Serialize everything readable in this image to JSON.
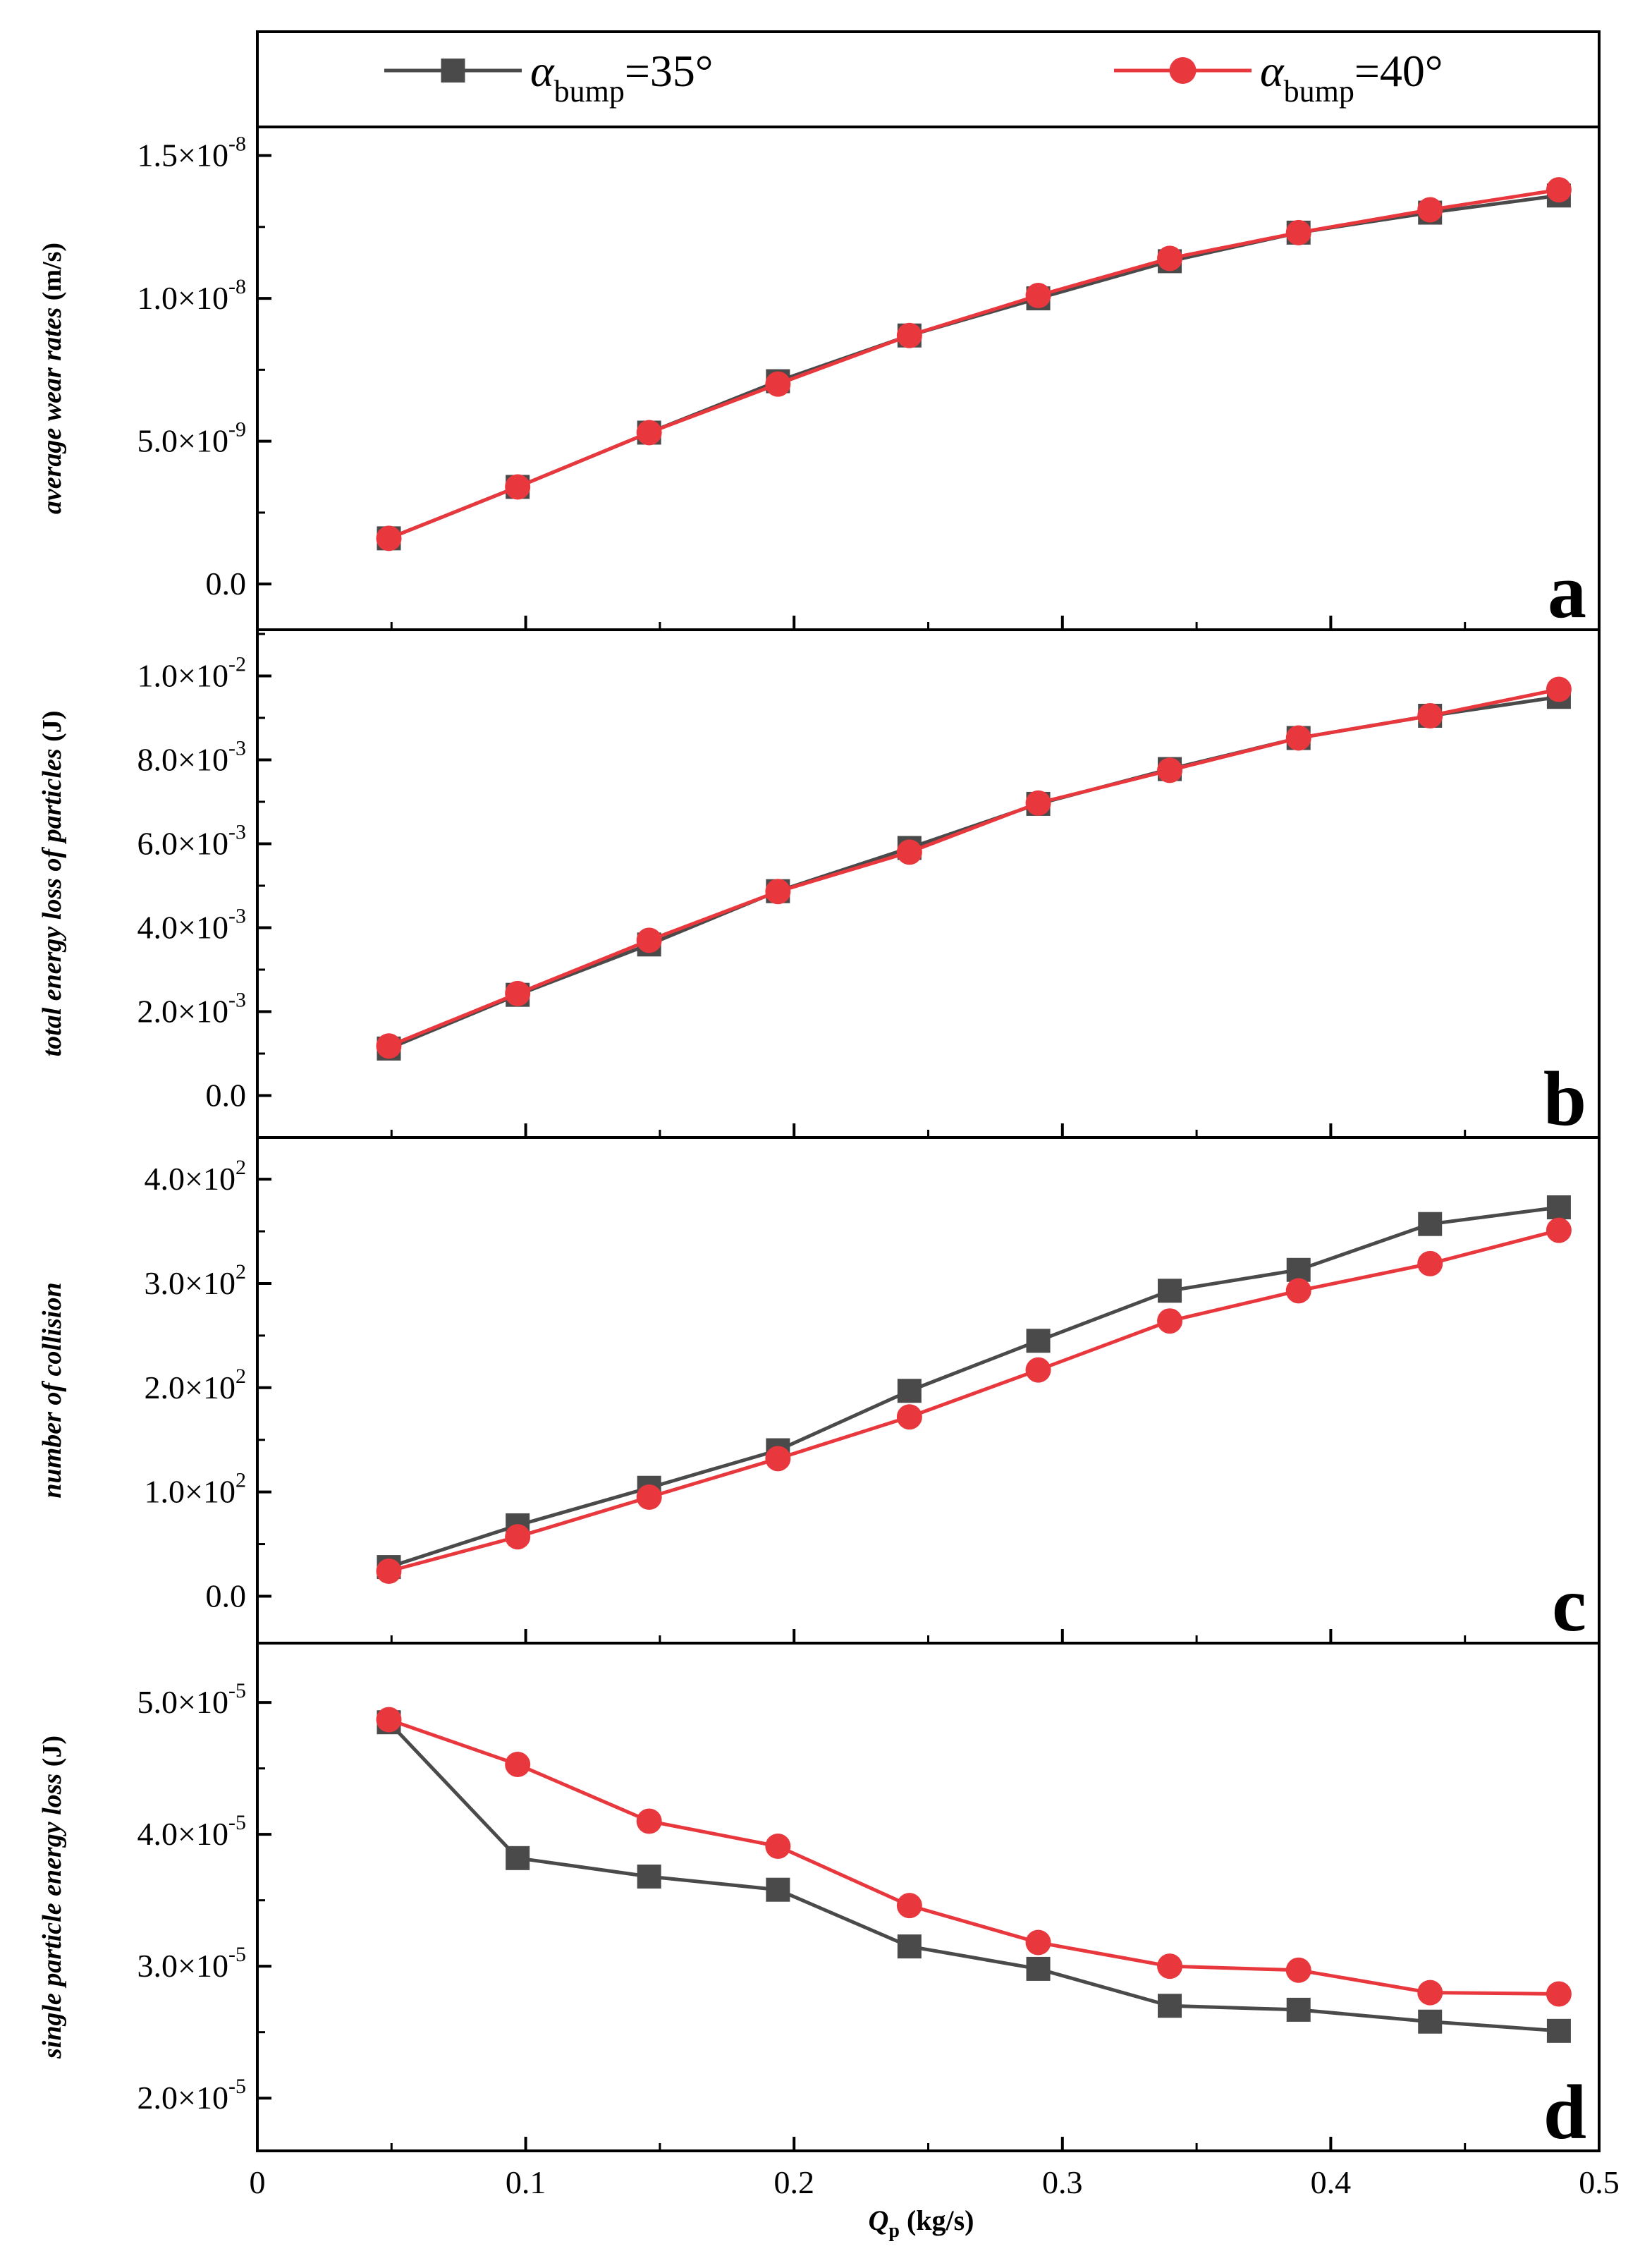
{
  "legend": {
    "items": [
      {
        "symbol": "α",
        "subscript": "bump",
        "value": "=35°",
        "color": "#4a4a4a",
        "marker": "square"
      },
      {
        "symbol": "α",
        "subscript": "bump",
        "value": "=40°",
        "color": "#e8383d",
        "marker": "circle"
      }
    ]
  },
  "x_axis": {
    "label_main": "Q",
    "label_sub": "p",
    "label_unit": " (kg/s)",
    "ticks": [
      {
        "value": 0,
        "label": "0"
      },
      {
        "value": 0.1,
        "label": "0.1"
      },
      {
        "value": 0.2,
        "label": "0.2"
      },
      {
        "value": 0.3,
        "label": "0.3"
      },
      {
        "value": 0.4,
        "label": "0.4"
      },
      {
        "value": 0.5,
        "label": "0.5"
      }
    ],
    "range": [
      0,
      0.5
    ]
  },
  "chart_data": [
    {
      "type": "line",
      "panel_label": "a",
      "title": "",
      "ylabel": "average wear rates",
      "ylabel_unit": " (m/s)",
      "xlabel": "Qp (kg/s)",
      "ylim": [
        -1.6e-09,
        1.6e-08
      ],
      "yticks": [
        {
          "value": 0,
          "mantissa": "0.0",
          "exponent": ""
        },
        {
          "value": 5e-09,
          "mantissa": "5.0×10",
          "exponent": "-9"
        },
        {
          "value": 1e-08,
          "mantissa": "1.0×10",
          "exponent": "-8"
        },
        {
          "value": 1.5e-08,
          "mantissa": "1.5×10",
          "exponent": "-8"
        }
      ],
      "x": [
        0.049,
        0.097,
        0.146,
        0.194,
        0.243,
        0.291,
        0.34,
        0.388,
        0.437,
        0.485
      ],
      "series": [
        {
          "name": "αbump=35°",
          "values": [
            1.6e-09,
            3.4e-09,
            5.3e-09,
            7.1e-09,
            8.7e-09,
            1e-08,
            1.13e-08,
            1.23e-08,
            1.3e-08,
            1.36e-08
          ]
        },
        {
          "name": "αbump=40°",
          "values": [
            1.6e-09,
            3.4e-09,
            5.3e-09,
            7e-09,
            8.7e-09,
            1.01e-08,
            1.14e-08,
            1.23e-08,
            1.31e-08,
            1.38e-08
          ]
        }
      ]
    },
    {
      "type": "line",
      "panel_label": "b",
      "title": "",
      "ylabel": "total energy loss of particles",
      "ylabel_unit": " (J)",
      "xlabel": "Qp (kg/s)",
      "ylim": [
        -0.001,
        0.0111
      ],
      "yticks": [
        {
          "value": 0,
          "mantissa": "0.0",
          "exponent": ""
        },
        {
          "value": 0.002,
          "mantissa": "2.0×10",
          "exponent": "-3"
        },
        {
          "value": 0.004,
          "mantissa": "4.0×10",
          "exponent": "-3"
        },
        {
          "value": 0.006,
          "mantissa": "6.0×10",
          "exponent": "-3"
        },
        {
          "value": 0.008,
          "mantissa": "8.0×10",
          "exponent": "-3"
        },
        {
          "value": 0.01,
          "mantissa": "1.0×10",
          "exponent": "-2"
        }
      ],
      "x": [
        0.049,
        0.097,
        0.146,
        0.194,
        0.243,
        0.291,
        0.34,
        0.388,
        0.437,
        0.485
      ],
      "series": [
        {
          "name": "αbump=35°",
          "values": [
            0.00112,
            0.0024,
            0.0036,
            0.00487,
            0.0059,
            0.00695,
            0.00778,
            0.00852,
            0.00905,
            0.0095
          ]
        },
        {
          "name": "αbump=40°",
          "values": [
            0.00118,
            0.00243,
            0.0037,
            0.00486,
            0.0058,
            0.00697,
            0.00775,
            0.00852,
            0.00905,
            0.00968
          ]
        }
      ]
    },
    {
      "type": "line",
      "panel_label": "c",
      "title": "",
      "ylabel": "number of collision",
      "ylabel_unit": "",
      "xlabel": "Qp (kg/s)",
      "ylim": [
        -45,
        440
      ],
      "yticks": [
        {
          "value": 0,
          "mantissa": "0.0",
          "exponent": ""
        },
        {
          "value": 100,
          "mantissa": "1.0×10",
          "exponent": "2"
        },
        {
          "value": 200,
          "mantissa": "2.0×10",
          "exponent": "2"
        },
        {
          "value": 300,
          "mantissa": "3.0×10",
          "exponent": "2"
        },
        {
          "value": 400,
          "mantissa": "4.0×10",
          "exponent": "2"
        }
      ],
      "x": [
        0.049,
        0.097,
        0.146,
        0.194,
        0.243,
        0.291,
        0.34,
        0.388,
        0.437,
        0.485
      ],
      "series": [
        {
          "name": "αbump=35°",
          "values": [
            28,
            68,
            104,
            140,
            197,
            245,
            293,
            313,
            357,
            373
          ]
        },
        {
          "name": "αbump=40°",
          "values": [
            24,
            57,
            95,
            132,
            172,
            217,
            264,
            293,
            319,
            351
          ]
        }
      ]
    },
    {
      "type": "line",
      "panel_label": "d",
      "title": "",
      "ylabel": "single particle energy loss",
      "ylabel_unit": " (J)",
      "xlabel": "Qp (kg/s)",
      "ylim": [
        1.6e-05,
        5.45e-05
      ],
      "yticks": [
        {
          "value": 2e-05,
          "mantissa": "2.0×10",
          "exponent": "-5"
        },
        {
          "value": 3e-05,
          "mantissa": "3.0×10",
          "exponent": "-5"
        },
        {
          "value": 4e-05,
          "mantissa": "4.0×10",
          "exponent": "-5"
        },
        {
          "value": 5e-05,
          "mantissa": "5.0×10",
          "exponent": "-5"
        }
      ],
      "x": [
        0.049,
        0.097,
        0.146,
        0.194,
        0.243,
        0.291,
        0.34,
        0.388,
        0.437,
        0.485
      ],
      "series": [
        {
          "name": "αbump=35°",
          "values": [
            4.85e-05,
            3.82e-05,
            3.68e-05,
            3.58e-05,
            3.15e-05,
            2.98e-05,
            2.7e-05,
            2.67e-05,
            2.58e-05,
            2.51e-05
          ]
        },
        {
          "name": "αbump=40°",
          "values": [
            4.87e-05,
            4.53e-05,
            4.1e-05,
            3.91e-05,
            3.46e-05,
            3.18e-05,
            3e-05,
            2.97e-05,
            2.8e-05,
            2.79e-05
          ]
        }
      ]
    }
  ]
}
